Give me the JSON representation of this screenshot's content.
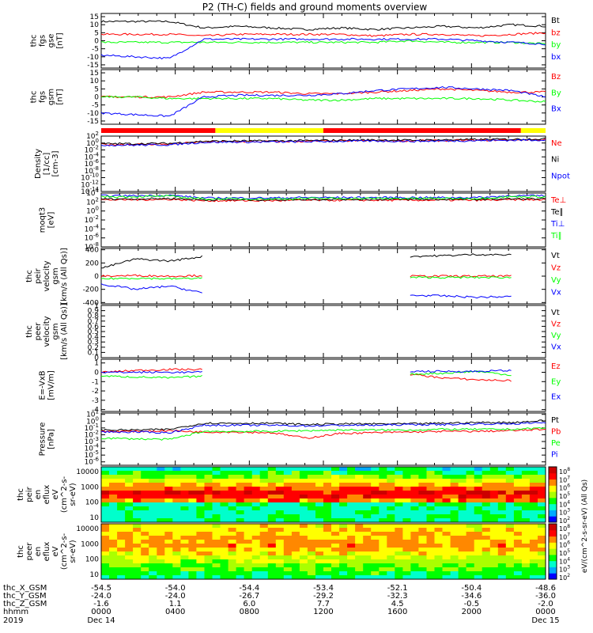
{
  "title": "P2 (TH-C) fields and ground moments overview",
  "colors": {
    "black": "#000000",
    "red": "#ff0000",
    "green": "#00ff00",
    "blue": "#0000ff",
    "yellow": "#ffff00"
  },
  "chart_data": [
    {
      "id": "fgs",
      "type": "line",
      "ylabel": [
        "thc",
        "fgs",
        "gse",
        "[nT]"
      ],
      "yticks": [
        15,
        10,
        5,
        0,
        -5,
        -10,
        -15
      ],
      "ylim": [
        -17,
        17
      ],
      "legend_placement": "right",
      "series": [
        {
          "name": "Bt",
          "color": "#000000",
          "values": [
            12,
            12,
            12,
            8,
            9,
            8,
            7,
            8,
            7,
            8,
            9,
            8,
            10,
            9
          ]
        },
        {
          "name": "bz",
          "color": "#ff0000",
          "values": [
            4,
            4,
            4,
            3,
            4,
            4,
            4,
            4,
            3,
            4,
            4,
            3,
            4,
            5
          ]
        },
        {
          "name": "by",
          "color": "#00ff00",
          "values": [
            -1,
            -1,
            -1,
            -1,
            -1,
            -1,
            -1,
            -1,
            -1,
            0,
            -1,
            -1,
            -1,
            -2
          ]
        },
        {
          "name": "bx",
          "color": "#0000ff",
          "values": [
            -9,
            -10,
            -11,
            1,
            1,
            1,
            1,
            1,
            1,
            1,
            1,
            0,
            -1,
            -2
          ]
        }
      ]
    },
    {
      "id": "fgs-gsm",
      "type": "line",
      "ylabel": [
        "thc",
        "fgs",
        "gsm",
        "[nT]"
      ],
      "yticks": [
        15,
        10,
        5,
        0,
        -5,
        -10,
        -15
      ],
      "ylim": [
        -17,
        17
      ],
      "legend_placement": "right",
      "series": [
        {
          "name": "Bz",
          "color": "#ff0000",
          "values": [
            0,
            0,
            0,
            3,
            3,
            3,
            2,
            2,
            3,
            4,
            5,
            4,
            3,
            3
          ]
        },
        {
          "name": "By",
          "color": "#00ff00",
          "values": [
            0,
            0,
            -1,
            -1,
            -1,
            -1,
            -2,
            -2,
            -1,
            -1,
            -1,
            -1,
            -2,
            -3
          ]
        },
        {
          "name": "Bx",
          "color": "#0000ff",
          "values": [
            -10,
            -11,
            -12,
            0,
            1,
            1,
            1,
            2,
            4,
            5,
            6,
            5,
            4,
            0
          ]
        }
      ]
    },
    {
      "id": "mode-bar",
      "type": "bar",
      "segments": [
        {
          "start": "0000",
          "end": "0610",
          "color": "#ff0000"
        },
        {
          "start": "0610",
          "end": "1200",
          "color": "#ffff00"
        },
        {
          "start": "1200",
          "end": "2240",
          "color": "#ff0000"
        },
        {
          "start": "2240",
          "end": "0000",
          "color": "#ffff00"
        }
      ]
    },
    {
      "id": "density",
      "type": "line",
      "ylabel": [
        "Density",
        "[1/cc]",
        "[cm-3]"
      ],
      "scale": "log",
      "yticks": [
        "10^2",
        "10^0",
        "10^-2",
        "10^-4",
        "10^-6",
        "10^-8",
        "10^-10",
        "10^-12",
        "10^-14"
      ],
      "ylim": [
        -14,
        2
      ],
      "legend_placement": "right",
      "series": [
        {
          "name": "Ne",
          "color": "#ff0000",
          "values": [
            -0.4,
            -0.4,
            -0.3,
            0.3,
            0.4,
            0.4,
            0.5,
            0.6,
            0.7,
            0.6,
            0.7,
            0.8,
            0.9,
            1.0
          ]
        },
        {
          "name": "Ni",
          "color": "#000000",
          "values": [
            -0.2,
            -0.2,
            -0.1,
            0.5,
            0.6,
            0.6,
            0.7,
            0.8,
            0.9,
            0.8,
            0.9,
            1.0,
            1.1,
            1.2
          ]
        },
        {
          "name": "Npot",
          "color": "#0000ff",
          "values": [
            -0.6,
            -0.6,
            -0.5,
            0.2,
            0.3,
            0.3,
            0.4,
            0.5,
            0.6,
            0.5,
            0.6,
            0.7,
            0.8,
            0.9
          ]
        }
      ]
    },
    {
      "id": "temperature",
      "type": "line",
      "ylabel": [
        "moqt3",
        "[eV]"
      ],
      "scale": "log",
      "yticks": [
        "10^4",
        "10^2",
        "10^0",
        "10^-2",
        "10^-4",
        "10^-6",
        "10^-8"
      ],
      "ylim": [
        -8,
        4
      ],
      "legend_placement": "right",
      "series": [
        {
          "name": "Te⊥",
          "color": "#ff0000",
          "values": [
            2.5,
            2.5,
            2.6,
            2.3,
            2.3,
            2.3,
            2.4,
            2.4,
            2.4,
            2.4,
            2.4,
            2.4,
            2.5,
            2.5
          ]
        },
        {
          "name": "Te∥",
          "color": "#000000",
          "values": [
            2.7,
            2.7,
            2.8,
            2.5,
            2.5,
            2.5,
            2.6,
            2.6,
            2.6,
            2.6,
            2.6,
            2.6,
            2.7,
            2.7
          ]
        },
        {
          "name": "Ti⊥",
          "color": "#0000ff",
          "values": [
            3.4,
            3.4,
            3.5,
            2.9,
            2.9,
            2.9,
            3.0,
            3.0,
            3.0,
            3.0,
            3.0,
            3.0,
            3.4,
            3.4
          ]
        },
        {
          "name": "Ti∥",
          "color": "#00ff00",
          "values": [
            3.2,
            3.2,
            3.3,
            2.7,
            2.7,
            2.7,
            2.8,
            2.8,
            2.8,
            2.8,
            2.8,
            2.8,
            3.2,
            3.2
          ]
        }
      ]
    },
    {
      "id": "pier-velocity",
      "type": "line",
      "ylabel": [
        "thc",
        "peir",
        "velocity",
        "gsm",
        "[km/s (All Qs)]"
      ],
      "yticks": [
        400,
        200,
        0,
        -200,
        -400
      ],
      "ylim": [
        -420,
        420
      ],
      "legend_placement": "right",
      "series": [
        {
          "name": "Vt",
          "color": "#000000",
          "values": [
            120,
            260,
            230,
            300,
            null,
            null,
            null,
            null,
            null,
            300,
            310,
            330,
            320,
            null
          ]
        },
        {
          "name": "Vz",
          "color": "#ff0000",
          "values": [
            0,
            10,
            0,
            10,
            null,
            null,
            null,
            null,
            null,
            0,
            0,
            0,
            0,
            null
          ]
        },
        {
          "name": "Vy",
          "color": "#00ff00",
          "values": [
            -40,
            -30,
            -40,
            -30,
            null,
            null,
            null,
            null,
            null,
            -20,
            -20,
            -20,
            -20,
            null
          ]
        },
        {
          "name": "Vx",
          "color": "#0000ff",
          "values": [
            -120,
            -200,
            -150,
            -260,
            null,
            null,
            null,
            null,
            null,
            -290,
            -300,
            -320,
            -310,
            null
          ]
        }
      ]
    },
    {
      "id": "peer-velocity",
      "type": "line",
      "ylabel": [
        "thc",
        "peer",
        "velocity",
        "gsm",
        "[km/s (All Qs)]"
      ],
      "yticks": [
        1.0,
        0.9,
        0.8,
        0.7,
        0.6,
        0.5,
        0.4,
        0.3,
        0.2,
        0.1,
        0.0
      ],
      "ylim": [
        0,
        1
      ],
      "legend_placement": "right",
      "series": [
        {
          "name": "Vt",
          "color": "#000000",
          "values": []
        },
        {
          "name": "Vz",
          "color": "#ff0000",
          "values": []
        },
        {
          "name": "Vy",
          "color": "#00ff00",
          "values": []
        },
        {
          "name": "Vx",
          "color": "#0000ff",
          "values": []
        }
      ]
    },
    {
      "id": "efield",
      "type": "line",
      "ylabel": [
        "E=-VxB",
        "[mV/m]"
      ],
      "yticks": [
        1,
        0,
        -1,
        -2,
        -3,
        -4
      ],
      "ylim": [
        -4.2,
        1.4
      ],
      "legend_placement": "right",
      "series": [
        {
          "name": "Ez",
          "color": "#ff0000",
          "values": [
            0.0,
            0.2,
            0.3,
            0.3,
            null,
            null,
            null,
            null,
            null,
            -0.2,
            -0.6,
            -0.8,
            -0.9,
            null
          ]
        },
        {
          "name": "Ey",
          "color": "#00ff00",
          "values": [
            -0.4,
            -0.5,
            -0.6,
            -0.4,
            null,
            null,
            null,
            null,
            null,
            -0.2,
            -0.1,
            0.1,
            -0.3,
            null
          ]
        },
        {
          "name": "Ex",
          "color": "#0000ff",
          "values": [
            0.0,
            0.0,
            0.0,
            0.0,
            null,
            null,
            null,
            null,
            null,
            0.1,
            0.1,
            0.1,
            0.2,
            null
          ]
        }
      ]
    },
    {
      "id": "pressure",
      "type": "line",
      "ylabel": [
        "Pressure",
        "[nPa]"
      ],
      "scale": "log",
      "yticks": [
        "10^1",
        "10^0",
        "10^-1",
        "10^-2",
        "10^-3",
        "10^-4",
        "10^-5",
        "10^-6"
      ],
      "ylim": [
        -6.5,
        1.2
      ],
      "legend_placement": "right",
      "series": [
        {
          "name": "Pt",
          "color": "#000000",
          "values": [
            -1.3,
            -1.3,
            -1.2,
            -0.3,
            -0.3,
            -0.3,
            -0.5,
            -0.4,
            -0.4,
            -0.4,
            -0.3,
            -0.2,
            -0.2,
            0.1
          ]
        },
        {
          "name": "Pb",
          "color": "#ff0000",
          "values": [
            -1.5,
            -1.5,
            -1.4,
            -1.6,
            -1.6,
            -1.7,
            -2.5,
            -1.8,
            -1.7,
            -1.6,
            -1.5,
            -1.5,
            -1.4,
            -1.2
          ]
        },
        {
          "name": "Pe",
          "color": "#00ff00",
          "values": [
            -2.5,
            -2.6,
            -2.7,
            -1.5,
            -1.5,
            -1.5,
            -1.4,
            -1.3,
            -1.3,
            -1.3,
            -1.2,
            -1.2,
            -1.2,
            -1.0
          ]
        },
        {
          "name": "Pi",
          "color": "#0000ff",
          "values": [
            -1.6,
            -1.6,
            -1.7,
            -0.6,
            -0.6,
            -0.6,
            -0.7,
            -0.6,
            -0.6,
            -0.5,
            -0.5,
            -0.4,
            -0.4,
            -0.2
          ]
        }
      ]
    },
    {
      "id": "peir-eflux",
      "type": "heatmap",
      "ylabel": [
        "thc",
        "peir",
        "en",
        "eflux",
        "eV",
        "(cm^2-s-",
        "sr-eV)"
      ],
      "scale": "log",
      "yticks": [
        10000,
        1000,
        100,
        10
      ],
      "ylim": [
        5,
        20000
      ],
      "colorbar": {
        "label": "eV/(cm^2-s-sr-eV) (All Qs)",
        "ticks": [
          "10^8",
          "10^7",
          "10^6",
          "10^5",
          "10^4",
          "10^3",
          "10^2"
        ]
      }
    },
    {
      "id": "peer-eflux",
      "type": "heatmap",
      "ylabel": [
        "thc",
        "peer",
        "en",
        "eflux",
        "eV",
        "(cm^2-s-",
        "sr-eV)"
      ],
      "scale": "log",
      "yticks": [
        10000,
        1000,
        100,
        10
      ],
      "ylim": [
        5,
        20000
      ],
      "colorbar": {
        "label": "eV/(cm^2-s-sr-eV) (All Qs)",
        "ticks": [
          "10^8",
          "10^7",
          "10^6",
          "10^5",
          "10^4",
          "10^3",
          "10^2"
        ]
      }
    }
  ],
  "time_axis": {
    "rows": [
      {
        "label": "thc_X_GSM",
        "values": [
          "-54.5",
          "-54.0",
          "-54.4",
          "-53.4",
          "-52.1",
          "-50.4",
          "-48.6"
        ]
      },
      {
        "label": "thc_Y_GSM",
        "values": [
          "-24.0",
          "-24.0",
          "-26.7",
          "-29.2",
          "-32.3",
          "-34.6",
          "-36.0"
        ]
      },
      {
        "label": "thc_Z_GSM",
        "values": [
          "-1.6",
          "1.1",
          "6.0",
          "7.7",
          "4.5",
          "-0.5",
          "-2.0"
        ]
      },
      {
        "label": "hhmm",
        "values": [
          "0000",
          "0400",
          "0800",
          "1200",
          "1600",
          "2000",
          "0000"
        ]
      },
      {
        "label": "2019",
        "values": [
          "Dec 14",
          "",
          "",
          "",
          "",
          "",
          "Dec 15"
        ]
      }
    ]
  }
}
